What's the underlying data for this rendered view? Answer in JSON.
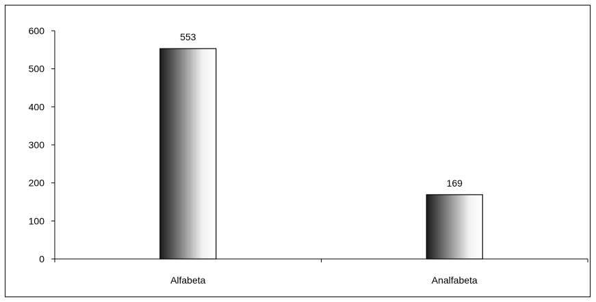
{
  "chart_data": {
    "type": "bar",
    "categories": [
      "Alfabeta",
      "Analfabeta"
    ],
    "values": [
      553,
      169
    ],
    "value_labels": [
      "553",
      "169"
    ],
    "title": "",
    "xlabel": "",
    "ylabel": "",
    "ylim": [
      0,
      600
    ],
    "yticks": [
      0,
      100,
      200,
      300,
      400,
      500,
      600
    ],
    "ytick_labels": [
      "0",
      "100",
      "200",
      "300",
      "400",
      "500",
      "600"
    ],
    "grid": false,
    "legend": "none",
    "bar_style": "horizontal gradient dark-to-white"
  }
}
